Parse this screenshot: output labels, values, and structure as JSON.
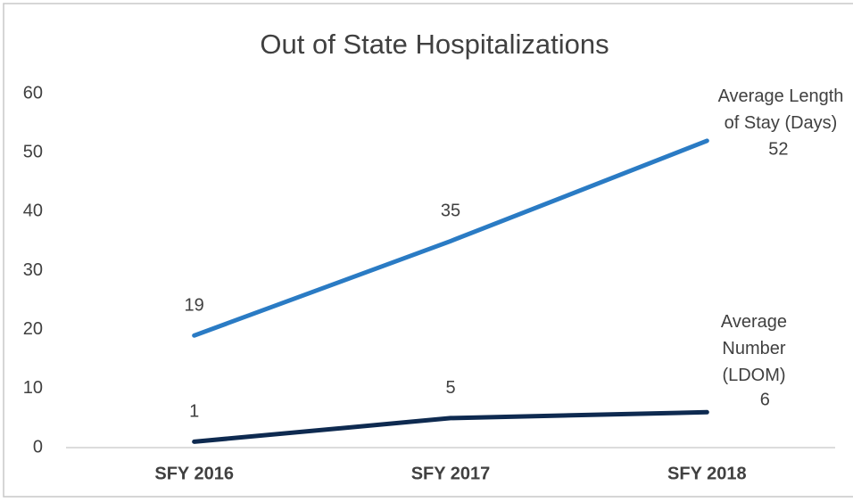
{
  "chart_data": {
    "type": "line",
    "title": "Out of State Hospitalizations",
    "categories": [
      "SFY 2016",
      "SFY 2017",
      "SFY 2018"
    ],
    "series": [
      {
        "name": "Average Length of Stay (Days)",
        "color": "#2a7bc4",
        "values": [
          19,
          35,
          52
        ]
      },
      {
        "name": "Average Number (LDOM)",
        "color": "#0e2a50",
        "values": [
          1,
          5,
          6
        ]
      }
    ],
    "ylim": [
      0,
      60
    ],
    "yticks": [
      0,
      10,
      20,
      30,
      40,
      50,
      60
    ],
    "grid": false
  }
}
